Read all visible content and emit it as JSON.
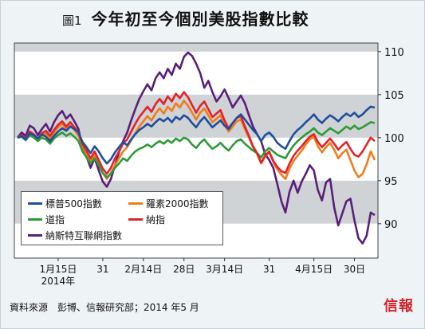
{
  "header": {
    "figure_number": "圖1",
    "title": "今年初至今個別美股指數比較"
  },
  "footer": {
    "source": "資料來源　彭博、信報研究部；2014 年5 月",
    "logo_text": "信報"
  },
  "colors": {
    "sp500": "#1f4e9c",
    "russell2000": "#f07c1a",
    "dow": "#2e9a38",
    "nasdaq": "#e1232c",
    "nasdaq_internet": "#5b1f7a",
    "band_gray": "#cfd3d6",
    "background": "#eef3f6"
  },
  "chart_data": {
    "type": "line",
    "title": "今年初至今個別美股指數比較",
    "xlabel": "",
    "ylabel": "",
    "y_axis_side": "right",
    "ylim": [
      86,
      111
    ],
    "yticks": [
      90,
      95,
      100,
      105,
      110
    ],
    "x_tick_labels": [
      "1月15日",
      "31",
      "2月14日",
      "28日",
      "3月14日",
      "31",
      "4月15日",
      "30日"
    ],
    "x_tick_sublabel": "2014年",
    "x_tick_index": [
      10,
      21,
      31,
      41,
      51,
      62,
      73,
      83
    ],
    "legend_placement": "bottom-left",
    "series": [
      {
        "name": "標普500指數",
        "key": "sp500",
        "values": [
          100,
          100.2,
          99.8,
          100.5,
          100.3,
          99.9,
          100.4,
          100.1,
          99.6,
          100.2,
          100.7,
          101.1,
          100.8,
          101.3,
          101.0,
          100.6,
          99.5,
          98.9,
          98.2,
          99.0,
          98.4,
          97.6,
          97.0,
          97.5,
          98.3,
          98.9,
          99.5,
          99.1,
          99.8,
          100.4,
          100.9,
          101.2,
          101.6,
          101.3,
          101.8,
          102.2,
          101.9,
          102.3,
          101.8,
          102.4,
          102.1,
          102.6,
          102.3,
          101.7,
          101.2,
          101.9,
          102.4,
          101.8,
          101.2,
          101.6,
          102.0,
          101.4,
          101.0,
          101.7,
          102.3,
          102.7,
          102.1,
          101.5,
          100.9,
          100.4,
          99.6,
          100.3,
          100.6,
          100.1,
          99.4,
          99.0,
          98.7,
          99.6,
          100.4,
          100.9,
          101.3,
          101.8,
          102.2,
          102.7,
          102.1,
          101.7,
          102.2,
          102.6,
          102.3,
          101.9,
          102.4,
          102.8,
          102.5,
          102.9,
          102.4,
          102.7,
          103.2,
          103.6,
          103.5
        ]
      },
      {
        "name": "羅素2000指數",
        "key": "russell2000",
        "values": [
          100,
          100.3,
          99.9,
          100.6,
          100.1,
          99.6,
          100.2,
          100.5,
          99.8,
          100.6,
          101.2,
          101.6,
          101.0,
          101.4,
          100.9,
          100.2,
          98.9,
          98.1,
          97.3,
          98.0,
          96.9,
          95.9,
          95.2,
          95.9,
          96.8,
          97.6,
          98.4,
          98.9,
          99.7,
          100.5,
          101.3,
          101.9,
          102.5,
          102.0,
          102.8,
          103.4,
          102.8,
          103.6,
          103.1,
          104.0,
          103.5,
          104.3,
          103.7,
          102.9,
          102.1,
          102.9,
          103.4,
          102.6,
          101.8,
          102.2,
          102.6,
          101.5,
          100.7,
          101.3,
          101.9,
          102.1,
          101.0,
          100.0,
          98.9,
          98.1,
          97.0,
          97.8,
          98.3,
          97.2,
          96.3,
          95.7,
          95.2,
          96.4,
          97.3,
          97.9,
          98.5,
          99.2,
          99.8,
          100.1,
          99.0,
          98.3,
          98.9,
          99.4,
          98.6,
          97.6,
          98.2,
          98.6,
          97.4,
          96.2,
          95.4,
          95.8,
          96.9,
          98.4,
          97.4
        ]
      },
      {
        "name": "道指",
        "key": "dow",
        "values": [
          100,
          100.1,
          99.7,
          100.3,
          100.0,
          99.6,
          100.0,
          99.8,
          99.3,
          99.9,
          100.3,
          100.6,
          100.2,
          100.5,
          100.1,
          99.6,
          98.4,
          97.7,
          97.0,
          97.6,
          96.8,
          95.9,
          95.4,
          95.8,
          96.5,
          97.0,
          97.6,
          97.3,
          97.9,
          98.4,
          98.7,
          98.9,
          99.2,
          98.9,
          99.3,
          99.6,
          99.3,
          99.7,
          99.4,
          99.9,
          99.6,
          100.0,
          99.8,
          99.2,
          98.8,
          99.4,
          99.8,
          99.2,
          98.7,
          99.0,
          99.4,
          98.9,
          98.5,
          99.1,
          99.6,
          99.8,
          99.3,
          98.9,
          98.5,
          98.2,
          97.7,
          98.4,
          98.8,
          98.4,
          98.0,
          97.8,
          97.6,
          98.4,
          99.1,
          99.6,
          100.0,
          100.4,
          100.7,
          101.1,
          100.6,
          100.3,
          100.7,
          101.1,
          100.8,
          100.5,
          100.9,
          101.3,
          101.0,
          101.4,
          101.0,
          101.2,
          101.5,
          101.8,
          101.7
        ]
      },
      {
        "name": "納指",
        "key": "nasdaq",
        "values": [
          100,
          100.3,
          99.9,
          100.7,
          100.4,
          99.9,
          100.5,
          100.8,
          100.2,
          100.9,
          101.5,
          101.9,
          101.3,
          101.8,
          101.2,
          100.6,
          99.2,
          98.5,
          97.6,
          98.4,
          97.4,
          96.4,
          95.8,
          96.5,
          97.6,
          98.4,
          99.3,
          99.8,
          100.7,
          101.6,
          102.4,
          103.0,
          103.6,
          103.0,
          103.9,
          104.5,
          103.9,
          104.8,
          104.2,
          105.1,
          104.6,
          105.3,
          104.7,
          103.8,
          102.9,
          103.7,
          104.2,
          103.3,
          102.4,
          102.8,
          103.2,
          102.0,
          101.1,
          101.7,
          102.3,
          102.5,
          101.3,
          100.2,
          99.0,
          98.2,
          97.1,
          97.9,
          98.4,
          97.3,
          96.6,
          96.1,
          95.9,
          97.0,
          97.9,
          98.5,
          99.0,
          99.6,
          100.1,
          100.4,
          99.5,
          98.9,
          99.4,
          99.9,
          99.3,
          98.6,
          99.1,
          99.5,
          98.7,
          98.0,
          97.8,
          98.4,
          99.2,
          100.0,
          99.6
        ]
      },
      {
        "name": "納斯特互聯網指數",
        "key": "nasdaq_internet",
        "values": [
          100,
          100.6,
          100.2,
          101.4,
          101.1,
          100.3,
          101.0,
          101.6,
          100.7,
          101.8,
          102.6,
          103.1,
          102.2,
          102.7,
          101.9,
          101.0,
          98.8,
          97.8,
          96.5,
          97.6,
          96.2,
          94.9,
          94.3,
          95.2,
          96.8,
          98.3,
          99.6,
          100.6,
          102.0,
          103.3,
          104.5,
          105.4,
          106.2,
          105.5,
          106.9,
          107.6,
          106.9,
          108.0,
          107.3,
          108.6,
          108.0,
          109.4,
          109.9,
          109.5,
          108.6,
          107.5,
          105.8,
          106.6,
          105.3,
          104.2,
          104.8,
          105.6,
          104.6,
          103.5,
          104.2,
          104.9,
          104.0,
          102.6,
          101.3,
          100.4,
          99.6,
          98.1,
          97.4,
          96.5,
          94.6,
          92.6,
          91.3,
          93.7,
          95.0,
          93.6,
          94.9,
          95.8,
          96.8,
          96.2,
          93.9,
          92.7,
          94.8,
          95.2,
          91.9,
          89.8,
          91.2,
          92.6,
          92.9,
          90.4,
          88.3,
          87.7,
          88.6,
          91.3,
          91.0
        ]
      }
    ]
  }
}
